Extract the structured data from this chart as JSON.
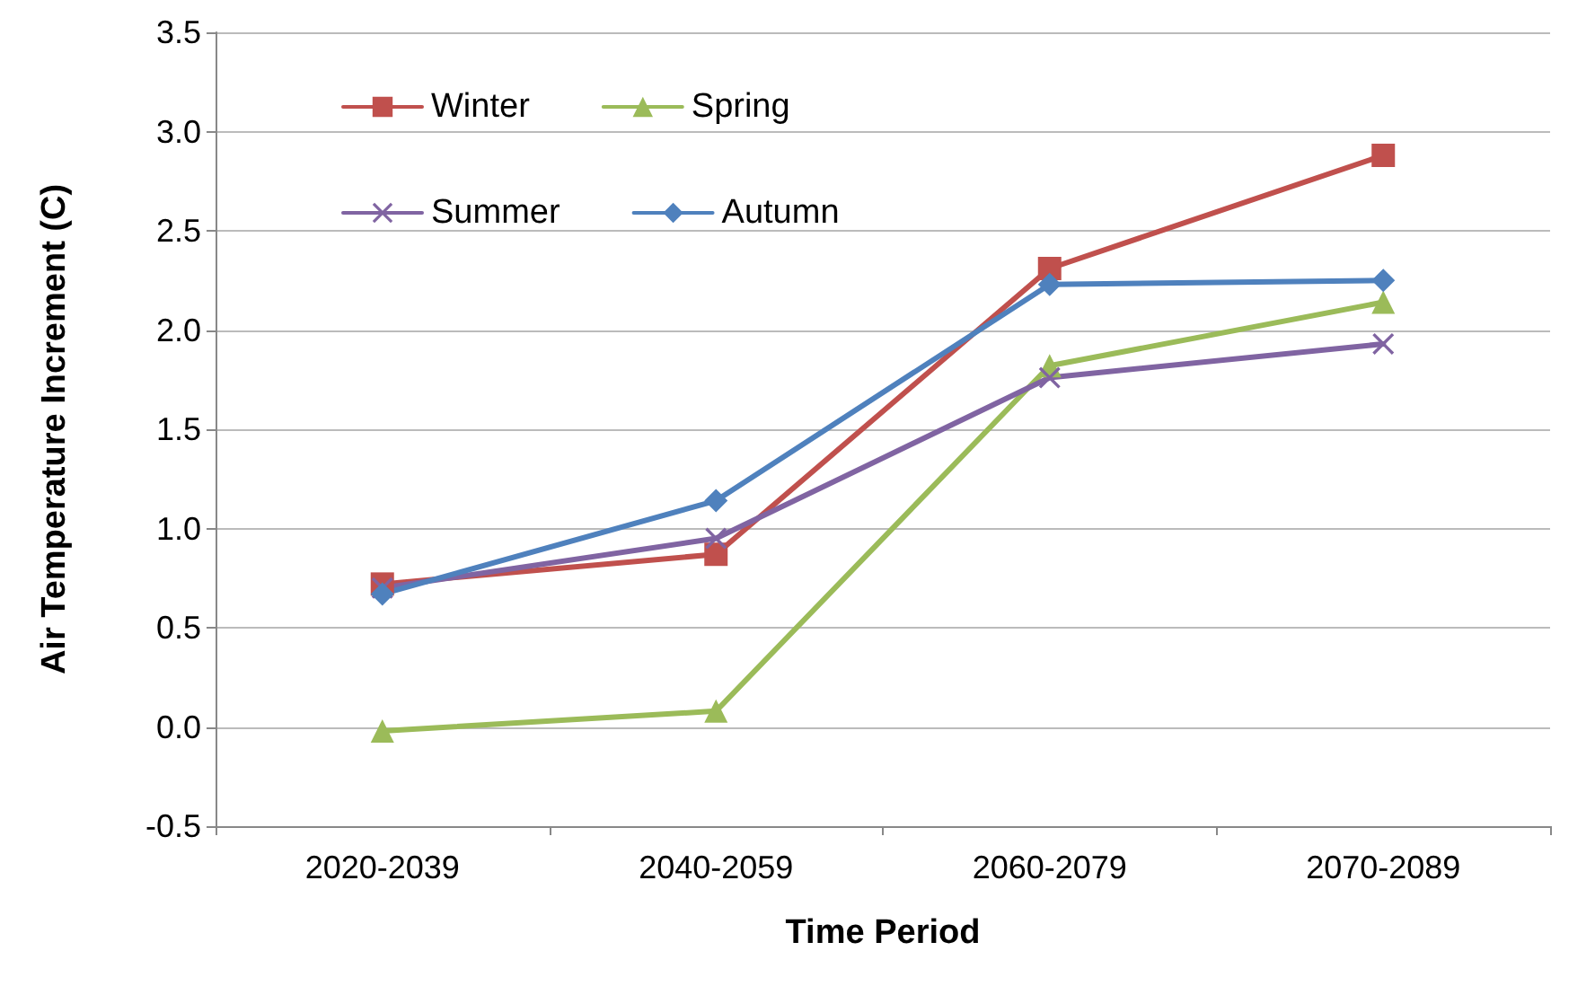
{
  "chart_data": {
    "type": "line",
    "xlabel": "Time Period",
    "ylabel": "Air Temperature Increment (C)",
    "categories": [
      "2020-2039",
      "2040-2059",
      "2060-2079",
      "2070-2089"
    ],
    "series": [
      {
        "name": "Winter",
        "color": "#c0504d",
        "marker": "square",
        "values": [
          0.72,
          0.87,
          2.31,
          2.88
        ]
      },
      {
        "name": "Spring",
        "color": "#9bbb59",
        "marker": "triangle",
        "values": [
          -0.02,
          0.08,
          1.82,
          2.14
        ]
      },
      {
        "name": "Summer",
        "color": "#8064a2",
        "marker": "cross",
        "values": [
          0.7,
          0.95,
          1.76,
          1.93
        ]
      },
      {
        "name": "Autumn",
        "color": "#4f81bd",
        "marker": "diamond",
        "values": [
          0.67,
          1.14,
          2.23,
          2.25
        ]
      }
    ],
    "ylim": [
      -0.5,
      3.5
    ],
    "yticks": [
      -0.5,
      {
        "value": 0,
        "label": "0.0"
      },
      0.5,
      {
        "value": 1,
        "label": "1.0"
      },
      1.5,
      {
        "value": 2,
        "label": "2.0"
      },
      2.5,
      {
        "value": 3,
        "label": "3.0"
      },
      3.5
    ],
    "grid": "y",
    "legend": "top left",
    "line_style": "solid"
  }
}
